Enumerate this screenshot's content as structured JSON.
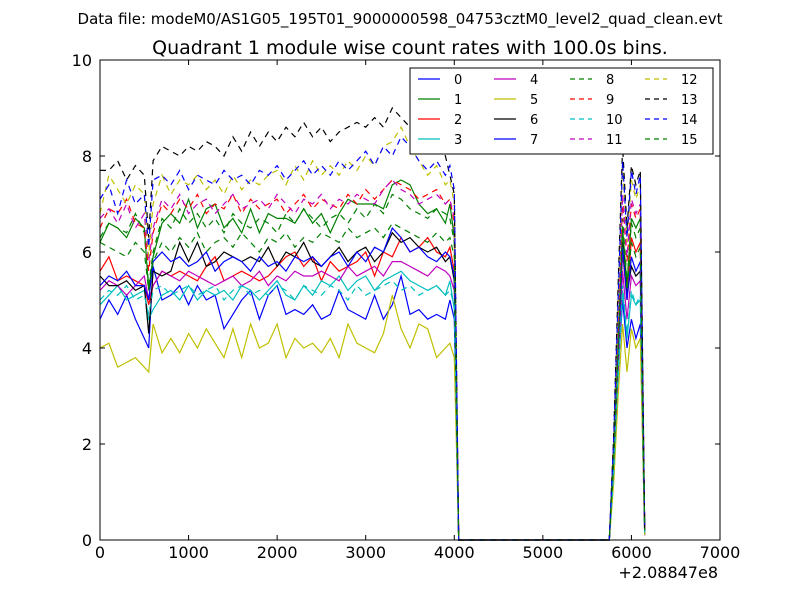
{
  "figure_title": "Data file: modeM0/AS1G05_195T01_9000000598_04753cztM0_level2_quad_clean.evt",
  "chart_data": {
    "type": "line",
    "title": "Quadrant 1 module wise count rates with 100.0s bins.",
    "xlabel": "",
    "ylabel": "",
    "x_offset_label": "+2.08847e8",
    "xlim": [
      0,
      7000
    ],
    "ylim": [
      0,
      10
    ],
    "x_ticks": [
      "0",
      "1000",
      "2000",
      "3000",
      "4000",
      "5000",
      "6000",
      "7000"
    ],
    "y_ticks": [
      "0",
      "2",
      "4",
      "6",
      "8",
      "10"
    ],
    "grid": false,
    "legend_position": "top-right",
    "legend_columns": 4,
    "x": [
      0,
      100,
      200,
      300,
      400,
      500,
      550,
      600,
      700,
      800,
      900,
      1000,
      1100,
      1200,
      1300,
      1400,
      1500,
      1600,
      1700,
      1800,
      1900,
      2000,
      2100,
      2200,
      2300,
      2400,
      2500,
      2600,
      2700,
      2800,
      2900,
      3000,
      3100,
      3200,
      3300,
      3400,
      3500,
      3600,
      3700,
      3800,
      3900,
      3950,
      4000,
      4050,
      5750,
      5800,
      5850,
      5900,
      5950,
      6000,
      6050,
      6100,
      6150
    ],
    "series": [
      {
        "name": "0",
        "color": "#0000ff",
        "dash": false,
        "values": [
          4.6,
          5.0,
          4.7,
          5.1,
          4.6,
          4.2,
          4.0,
          5.7,
          5.0,
          5.1,
          5.3,
          4.9,
          5.3,
          5.0,
          5.1,
          4.4,
          4.7,
          5.0,
          5.2,
          4.6,
          5.1,
          5.3,
          4.7,
          4.8,
          4.7,
          4.9,
          4.6,
          4.7,
          5.2,
          4.8,
          4.7,
          4.6,
          5.1,
          4.6,
          4.9,
          5.5,
          4.7,
          4.8,
          4.6,
          4.7,
          4.6,
          5.0,
          4.6,
          0.0,
          0.0,
          1.5,
          3.5,
          5.0,
          4.0,
          4.6,
          4.2,
          4.5,
          0.1
        ]
      },
      {
        "name": "1",
        "color": "#008000",
        "dash": false,
        "values": [
          6.2,
          6.6,
          6.5,
          6.3,
          6.7,
          6.5,
          5.2,
          5.9,
          6.6,
          6.8,
          6.6,
          7.1,
          6.5,
          6.9,
          7.0,
          6.5,
          6.7,
          6.4,
          6.9,
          6.4,
          6.8,
          6.7,
          6.7,
          6.6,
          6.9,
          6.6,
          6.8,
          6.4,
          6.8,
          7.1,
          7.0,
          7.0,
          7.0,
          6.9,
          7.4,
          7.5,
          7.4,
          7.0,
          6.8,
          6.9,
          6.6,
          7.0,
          6.3,
          0.0,
          0.0,
          1.8,
          4.0,
          6.5,
          5.3,
          6.7,
          6.5,
          6.7,
          0.2
        ]
      },
      {
        "name": "2",
        "color": "#ff0000",
        "dash": false,
        "values": [
          5.6,
          5.9,
          5.4,
          5.5,
          5.4,
          5.3,
          4.9,
          5.3,
          5.6,
          5.5,
          5.6,
          5.5,
          5.4,
          5.7,
          5.9,
          5.4,
          5.5,
          5.6,
          5.5,
          5.4,
          5.5,
          5.7,
          5.9,
          6.0,
          5.7,
          5.9,
          5.4,
          5.8,
          5.6,
          5.7,
          5.8,
          6.0,
          5.5,
          6.0,
          5.9,
          6.3,
          6.0,
          6.1,
          6.3,
          6.0,
          5.9,
          6.1,
          5.6,
          0.0,
          0.0,
          1.6,
          3.8,
          6.0,
          5.0,
          6.3,
          6.0,
          6.2,
          0.2
        ]
      },
      {
        "name": "3",
        "color": "#00bfbf",
        "dash": false,
        "values": [
          4.9,
          5.1,
          5.3,
          5.0,
          5.1,
          5.2,
          4.6,
          4.8,
          5.1,
          5.2,
          5.0,
          5.3,
          5.0,
          5.2,
          5.1,
          5.2,
          5.0,
          5.3,
          5.2,
          5.0,
          5.2,
          5.4,
          5.1,
          5.0,
          5.3,
          5.1,
          5.4,
          5.3,
          5.5,
          5.2,
          5.4,
          5.5,
          5.2,
          5.4,
          5.5,
          5.6,
          5.4,
          5.3,
          5.2,
          5.3,
          5.1,
          5.4,
          4.8,
          0.0,
          0.0,
          1.4,
          3.4,
          5.2,
          4.2,
          5.1,
          4.9,
          5.0,
          0.1
        ]
      },
      {
        "name": "4",
        "color": "#bf00bf",
        "dash": false,
        "values": [
          5.2,
          5.4,
          5.3,
          5.1,
          5.3,
          5.5,
          5.0,
          5.3,
          5.6,
          5.5,
          5.4,
          5.6,
          5.5,
          5.4,
          5.3,
          5.4,
          5.5,
          5.3,
          5.4,
          5.6,
          5.3,
          5.5,
          5.4,
          5.6,
          5.5,
          5.5,
          5.6,
          5.5,
          5.4,
          5.7,
          5.5,
          5.6,
          5.7,
          5.5,
          5.8,
          5.8,
          5.7,
          5.6,
          5.5,
          5.7,
          5.6,
          5.5,
          5.2,
          0.0,
          0.0,
          1.5,
          3.6,
          5.6,
          4.6,
          5.5,
          5.3,
          5.4,
          0.1
        ]
      },
      {
        "name": "5",
        "color": "#bfbf00",
        "dash": false,
        "values": [
          4.0,
          4.1,
          3.6,
          3.7,
          3.8,
          3.6,
          3.5,
          4.5,
          3.9,
          4.2,
          3.9,
          4.3,
          4.0,
          4.4,
          4.1,
          3.8,
          4.4,
          3.8,
          4.5,
          4.0,
          4.1,
          4.5,
          3.8,
          4.2,
          4.0,
          4.1,
          3.9,
          4.2,
          3.8,
          4.5,
          4.1,
          4.0,
          3.9,
          4.3,
          5.1,
          4.4,
          4.0,
          4.5,
          4.4,
          3.8,
          4.0,
          4.1,
          3.8,
          0.0,
          0.0,
          1.2,
          3.0,
          4.5,
          3.5,
          4.4,
          4.0,
          4.2,
          0.1
        ]
      },
      {
        "name": "6",
        "color": "#000000",
        "dash": false,
        "values": [
          5.5,
          5.3,
          5.3,
          5.4,
          5.2,
          5.3,
          4.3,
          5.6,
          5.5,
          5.6,
          6.2,
          5.8,
          6.2,
          5.7,
          5.8,
          6.0,
          5.9,
          5.8,
          5.9,
          5.8,
          6.1,
          5.7,
          6.0,
          5.9,
          6.2,
          5.8,
          5.7,
          5.9,
          6.1,
          5.8,
          6.0,
          6.1,
          5.8,
          6.0,
          6.4,
          6.2,
          6.3,
          6.1,
          6.0,
          6.1,
          5.8,
          5.9,
          5.4,
          0.0,
          0.0,
          1.7,
          3.9,
          6.2,
          5.1,
          5.7,
          5.5,
          5.6,
          0.2
        ]
      },
      {
        "name": "7",
        "color": "#0000ff",
        "dash": false,
        "values": [
          5.3,
          5.5,
          5.4,
          5.6,
          5.3,
          5.3,
          5.0,
          5.8,
          6.0,
          5.8,
          5.9,
          5.7,
          5.8,
          6.0,
          5.6,
          5.8,
          5.9,
          5.8,
          5.6,
          5.9,
          5.7,
          5.8,
          5.6,
          5.9,
          5.8,
          5.9,
          5.7,
          5.9,
          6.0,
          5.7,
          6.0,
          5.8,
          6.1,
          6.0,
          6.5,
          6.3,
          6.0,
          6.1,
          5.9,
          5.8,
          6.0,
          5.9,
          5.5,
          0.0,
          0.0,
          1.7,
          4.0,
          6.1,
          5.0,
          5.9,
          5.6,
          5.8,
          0.2
        ]
      }
    ],
    "series_dashed": [
      {
        "name": "8",
        "color": "#008000",
        "dash": true,
        "values": [
          6.3,
          6.6,
          6.5,
          6.4,
          6.8,
          6.4,
          5.3,
          6.0,
          6.7,
          6.5,
          6.9,
          6.6,
          6.8,
          6.5,
          6.7,
          6.4,
          6.8,
          6.6,
          6.5,
          6.7,
          6.6,
          6.4,
          6.8,
          6.6,
          6.9,
          6.7,
          6.5,
          6.7,
          6.8,
          6.6,
          6.9,
          6.7,
          7.0,
          6.8,
          7.2,
          7.1,
          6.9,
          6.8,
          6.7,
          6.9,
          6.8,
          6.7,
          6.2,
          0.0,
          0.0,
          1.8,
          4.1,
          6.7,
          5.4,
          6.6,
          6.3,
          6.5,
          0.2
        ]
      },
      {
        "name": "9",
        "color": "#ff0000",
        "dash": true,
        "values": [
          6.5,
          6.9,
          6.8,
          7.1,
          6.6,
          6.5,
          5.6,
          6.4,
          7.0,
          6.8,
          7.1,
          6.9,
          7.2,
          6.8,
          7.0,
          6.9,
          7.2,
          6.8,
          7.1,
          6.9,
          7.0,
          7.1,
          6.8,
          7.0,
          7.2,
          6.9,
          7.1,
          7.0,
          6.9,
          7.2,
          7.0,
          7.3,
          7.1,
          7.3,
          7.5,
          7.4,
          7.3,
          7.1,
          7.2,
          7.3,
          7.0,
          7.1,
          6.6,
          0.0,
          0.0,
          1.9,
          4.4,
          7.1,
          5.8,
          7.0,
          6.7,
          6.9,
          0.2
        ]
      },
      {
        "name": "10",
        "color": "#00bfbf",
        "dash": true,
        "values": [
          5.0,
          5.2,
          5.1,
          5.3,
          5.0,
          5.1,
          4.7,
          5.2,
          5.3,
          5.1,
          5.2,
          5.3,
          5.1,
          5.2,
          5.3,
          5.0,
          5.2,
          5.3,
          5.1,
          5.2,
          5.1,
          5.3,
          5.2,
          5.0,
          5.3,
          5.2,
          5.1,
          5.3,
          5.2,
          5.0,
          5.3,
          5.1,
          5.2,
          5.3,
          5.4,
          5.2,
          5.3,
          5.1,
          5.2,
          5.3,
          5.1,
          5.2,
          4.9,
          0.0,
          0.0,
          1.4,
          3.5,
          5.3,
          4.3,
          5.2,
          4.9,
          5.1,
          0.1
        ]
      },
      {
        "name": "11",
        "color": "#bf00bf",
        "dash": true,
        "values": [
          6.7,
          6.9,
          6.6,
          7.0,
          6.5,
          6.8,
          5.8,
          6.5,
          7.1,
          6.9,
          7.2,
          6.8,
          7.0,
          7.1,
          6.8,
          7.0,
          7.2,
          6.9,
          7.0,
          7.1,
          6.9,
          7.2,
          7.0,
          6.8,
          7.1,
          7.0,
          7.2,
          6.9,
          7.1,
          7.0,
          7.2,
          7.1,
          7.0,
          7.3,
          7.5,
          7.3,
          7.2,
          7.0,
          7.1,
          7.2,
          7.0,
          7.1,
          6.7,
          0.0,
          0.0,
          1.9,
          4.5,
          7.2,
          5.9,
          7.1,
          6.8,
          7.0,
          0.2
        ]
      },
      {
        "name": "12",
        "color": "#bfbf00",
        "dash": true,
        "values": [
          6.8,
          7.6,
          7.3,
          7.0,
          7.4,
          7.2,
          5.9,
          7.0,
          7.6,
          7.2,
          7.5,
          7.4,
          7.6,
          7.3,
          7.5,
          7.2,
          7.6,
          7.3,
          7.5,
          7.4,
          7.6,
          7.7,
          7.4,
          7.8,
          7.5,
          7.9,
          7.6,
          7.8,
          7.6,
          7.9,
          7.7,
          8.0,
          7.8,
          8.2,
          8.3,
          8.6,
          8.2,
          7.9,
          7.6,
          7.8,
          7.4,
          7.5,
          7.0,
          0.0,
          0.0,
          2.0,
          4.8,
          7.8,
          6.2,
          7.5,
          7.1,
          7.4,
          0.2
        ]
      },
      {
        "name": "13",
        "color": "#000000",
        "dash": true,
        "values": [
          7.7,
          7.7,
          7.9,
          7.5,
          7.8,
          7.6,
          6.3,
          7.9,
          8.2,
          8.1,
          8.0,
          8.2,
          8.1,
          8.3,
          8.2,
          8.0,
          8.4,
          8.1,
          8.5,
          8.2,
          8.5,
          8.3,
          8.6,
          8.4,
          8.7,
          8.4,
          8.6,
          8.3,
          8.5,
          8.6,
          8.7,
          8.6,
          8.8,
          8.6,
          9.0,
          8.8,
          8.6,
          8.4,
          8.2,
          8.5,
          8.0,
          7.6,
          7.2,
          0.0,
          0.0,
          2.2,
          5.3,
          8.2,
          6.5,
          7.8,
          7.4,
          7.7,
          0.2
        ]
      },
      {
        "name": "14",
        "color": "#0000ff",
        "dash": true,
        "values": [
          7.1,
          7.4,
          6.8,
          7.5,
          7.0,
          7.2,
          6.1,
          7.5,
          7.6,
          7.4,
          7.7,
          7.3,
          7.6,
          7.5,
          7.4,
          7.7,
          7.5,
          7.6,
          7.4,
          7.7,
          7.6,
          7.8,
          7.5,
          7.7,
          7.9,
          7.6,
          7.8,
          7.6,
          7.9,
          7.7,
          7.9,
          8.1,
          7.8,
          8.2,
          8.0,
          8.4,
          8.2,
          7.9,
          7.7,
          7.9,
          7.6,
          7.8,
          7.3,
          0.0,
          0.0,
          2.1,
          5.0,
          7.9,
          6.3,
          7.7,
          7.2,
          7.6,
          0.2
        ]
      },
      {
        "name": "15",
        "color": "#008000",
        "dash": true,
        "values": [
          6.2,
          6.1,
          6.0,
          5.9,
          6.2,
          6.0,
          5.2,
          5.8,
          6.2,
          6.0,
          6.3,
          6.1,
          6.4,
          6.0,
          6.2,
          6.3,
          6.1,
          6.4,
          6.2,
          6.0,
          6.3,
          6.2,
          6.4,
          6.1,
          6.3,
          6.2,
          6.4,
          6.3,
          6.2,
          6.5,
          6.3,
          6.4,
          6.5,
          6.3,
          6.6,
          6.5,
          6.4,
          6.3,
          6.2,
          6.4,
          6.2,
          6.3,
          5.9,
          0.0,
          0.0,
          1.7,
          4.0,
          6.4,
          5.2,
          6.2,
          5.9,
          6.1,
          0.2
        ]
      }
    ]
  }
}
